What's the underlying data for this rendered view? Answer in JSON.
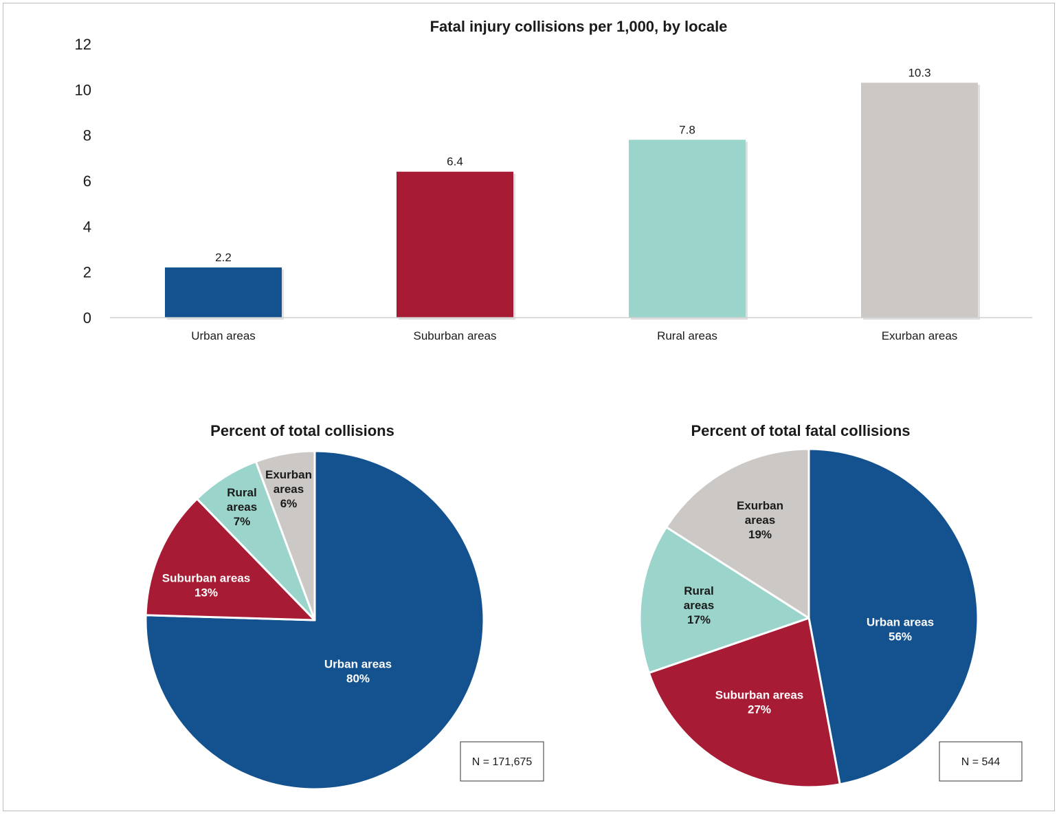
{
  "colors": {
    "urban": "#14528f",
    "suburban": "#a81b34",
    "rural": "#9ad4cb",
    "exurban": "#cbc8c5"
  },
  "chart_data": [
    {
      "type": "bar",
      "title": "Fatal injury collisions per 1,000, by locale",
      "categories": [
        "Urban areas",
        "Suburban areas",
        "Rural areas",
        "Exurban areas"
      ],
      "values": [
        2.2,
        6.4,
        7.8,
        10.3
      ],
      "value_labels": [
        "2.2",
        "6.4",
        "7.8",
        "10.3"
      ],
      "ylim": [
        0,
        12
      ],
      "yticks": [
        "0",
        "2",
        "4",
        "6",
        "8",
        "10",
        "12"
      ],
      "xlabel": "",
      "ylabel": "",
      "grid": false
    },
    {
      "type": "pie",
      "title": "Percent of total collisions",
      "note": "N = 171,675",
      "slices": [
        {
          "lines": [
            "Urban areas",
            "80%"
          ],
          "value": 80
        },
        {
          "lines": [
            "Suburban areas",
            "13%"
          ],
          "value": 13
        },
        {
          "lines": [
            "Rural",
            "areas",
            "7%"
          ],
          "value": 7
        },
        {
          "lines": [
            "Exurban",
            "areas",
            "6%"
          ],
          "value": 6
        }
      ]
    },
    {
      "type": "pie",
      "title": "Percent of total fatal collisions",
      "note": "N = 544",
      "slices": [
        {
          "lines": [
            "Urban areas",
            "56%"
          ],
          "value": 56
        },
        {
          "lines": [
            "Suburban areas",
            "27%"
          ],
          "value": 27
        },
        {
          "lines": [
            "Rural",
            "areas",
            "17%"
          ],
          "value": 17
        },
        {
          "lines": [
            "Exurban",
            "areas",
            "19%"
          ],
          "value": 19
        }
      ]
    }
  ]
}
